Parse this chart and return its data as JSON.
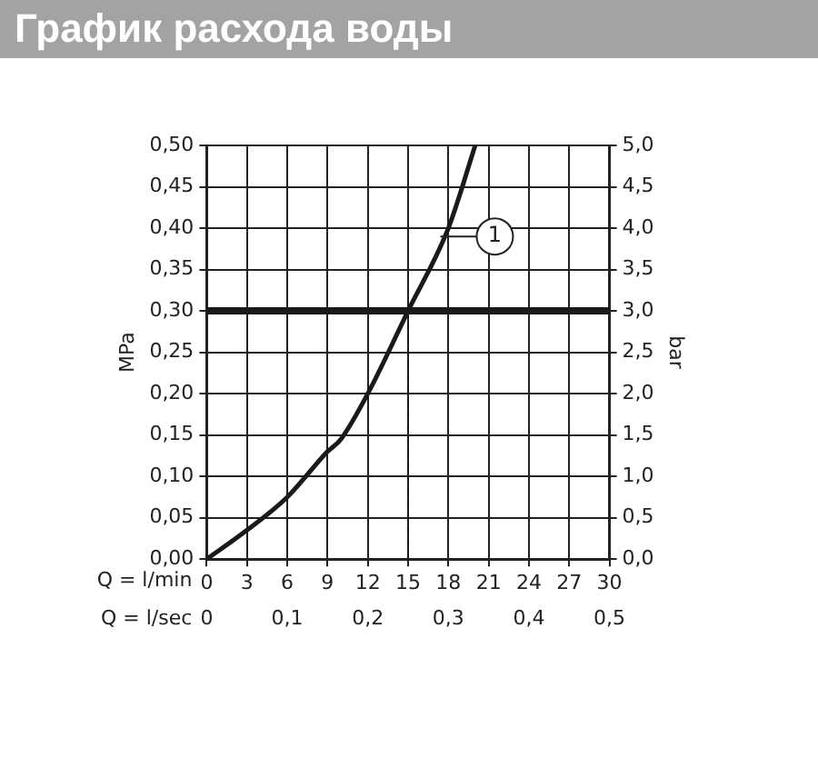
{
  "chart_data": {
    "type": "line",
    "title": "График расхода воды",
    "xlabel": "Q = l/min",
    "x2label": "Q = l/sec",
    "ylabel": "MPa",
    "y2label": "bar",
    "series": [
      {
        "color": "#1a1a1a",
        "x": [
          0,
          3,
          6,
          9,
          10,
          12,
          15,
          18,
          20
        ],
        "values": [
          0,
          0.035,
          0.075,
          0.13,
          0.145,
          0.2,
          0.3,
          0.4,
          0.5
        ]
      }
    ],
    "xlim": [
      0,
      30
    ],
    "xticks": [
      0,
      3,
      6,
      9,
      12,
      15,
      18,
      21,
      24,
      27,
      30
    ],
    "x2lim": [
      0,
      0.5
    ],
    "x2ticks": [
      0,
      {
        "value": 0.1,
        "label": "0,1"
      },
      {
        "value": 0.2,
        "label": "0,2"
      },
      {
        "value": 0.3,
        "label": "0,3"
      },
      {
        "value": 0.4,
        "label": "0,4"
      },
      {
        "value": 0.5,
        "label": "0,5"
      }
    ],
    "ylim": [
      0,
      0.5
    ],
    "yticks": [
      {
        "value": 0,
        "label": "0,00"
      },
      {
        "value": 0.05,
        "label": "0,05"
      },
      {
        "value": 0.1,
        "label": "0,10"
      },
      {
        "value": 0.15,
        "label": "0,15"
      },
      {
        "value": 0.2,
        "label": "0,20"
      },
      {
        "value": 0.25,
        "label": "0,25"
      },
      {
        "value": 0.3,
        "label": "0,30"
      },
      {
        "value": 0.35,
        "label": "0,35"
      },
      {
        "value": 0.4,
        "label": "0,40"
      },
      {
        "value": 0.45,
        "label": "0,45"
      },
      {
        "value": 0.5,
        "label": "0,50"
      }
    ],
    "y2lim": [
      0,
      5
    ],
    "y2ticks": [
      {
        "value": 0,
        "label": "0,0"
      },
      {
        "value": 0.5,
        "label": "0,5"
      },
      {
        "value": 1,
        "label": "1,0"
      },
      {
        "value": 1.5,
        "label": "1,5"
      },
      {
        "value": 2,
        "label": "2,0"
      },
      {
        "value": 2.5,
        "label": "2,5"
      },
      {
        "value": 3,
        "label": "3,0"
      },
      {
        "value": 3.5,
        "label": "3,5"
      },
      {
        "value": 4,
        "label": "4,0"
      },
      {
        "value": 4.5,
        "label": "4,5"
      },
      {
        "value": 5,
        "label": "5,0"
      }
    ],
    "grid": true,
    "marker": "none",
    "ref_lines": [
      {
        "axis": "y",
        "value": 0.3,
        "color": "#1a1a1a"
      },
      {
        "axis": "x",
        "value": 15,
        "color": "#1a1a1a",
        "line_style": "dashed"
      }
    ],
    "annotations": [
      {
        "text": "1",
        "x": 17.4,
        "y": 0.39
      }
    ]
  }
}
